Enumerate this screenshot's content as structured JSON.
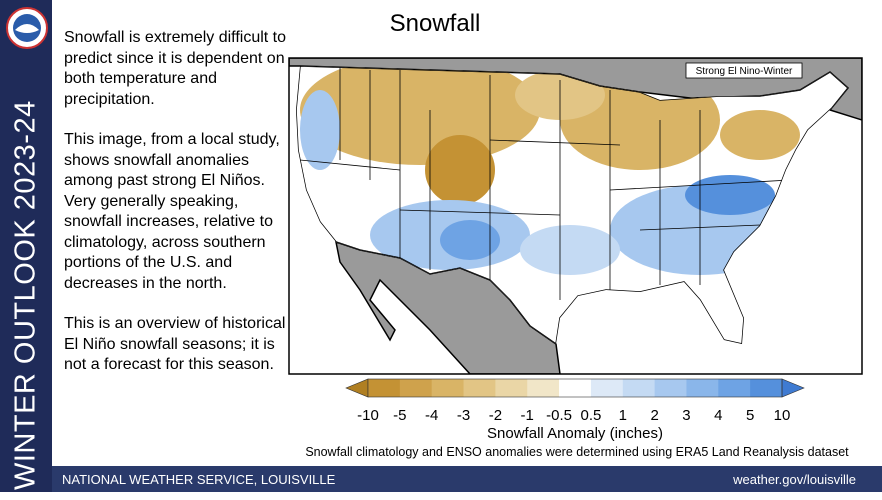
{
  "sidebar": {
    "title": "WINTER OUTLOOK 2023-24"
  },
  "header": {
    "title": "Snowfall"
  },
  "body": {
    "paragraphs": [
      "Snowfall is extremely difficult to predict since it is dependent on both temperature and precipitation.",
      "This image, from a local study, shows snowfall anomalies among past strong El Niños. Very generally speaking, snowfall increases, relative to climatology, across southern portions of the U.S. and decreases in the north.",
      "This is an overview of historical El Niño snowfall seasons; it is not a forecast for this season."
    ]
  },
  "map": {
    "label": "Strong El Nino-Winter",
    "colorbar": {
      "ticks": [
        -10,
        -5,
        -4,
        -3,
        -2,
        -1,
        -0.5,
        0.5,
        1,
        2,
        3,
        4,
        5,
        10
      ],
      "colors": [
        "#b07f22",
        "#c49234",
        "#cfa24c",
        "#d9b466",
        "#e2c585",
        "#ead6a6",
        "#f1e6c8",
        "#ffffff",
        "#dde9f7",
        "#c4daf3",
        "#a7c8ef",
        "#8ab6ea",
        "#6ea3e4",
        "#5590dc",
        "#3f7bd2"
      ],
      "label": "Snowfall Anomaly (inches)"
    },
    "caption": "Snowfall climatology and ENSO anomalies were determined using ERA5 Land Reanalysis dataset"
  },
  "footer": {
    "left": "NATIONAL WEATHER SERVICE, LOUISVILLE",
    "right": "weather.gov/louisville"
  }
}
